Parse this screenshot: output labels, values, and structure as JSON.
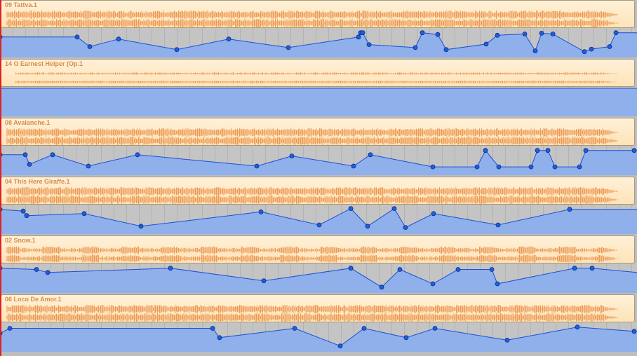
{
  "colors": {
    "region_fill": "#fde3b8",
    "waveform": "#ec9a55",
    "region_title": "#d88c4d",
    "automation_fill": "#8fb0ea",
    "automation_line": "#1b4fd6",
    "node": "#1e5fe0",
    "lane_background": "#c4c4c4",
    "playhead": "#e02020"
  },
  "icons": [
    "automation-node",
    "playhead-marker"
  ],
  "tracks": [
    {
      "region_name": "09 Tattva.1",
      "wave_style": "dense",
      "automation": [
        [
          0,
          0.3
        ],
        [
          110,
          0.3
        ],
        [
          128,
          0.68
        ],
        [
          169,
          0.38
        ],
        [
          252,
          0.8
        ],
        [
          326,
          0.38
        ],
        [
          411,
          0.72
        ],
        [
          511,
          0.3
        ],
        [
          514,
          0.13
        ],
        [
          517,
          0.13
        ],
        [
          526,
          0.6
        ],
        [
          592,
          0.72
        ],
        [
          602,
          0.13
        ],
        [
          624,
          0.2
        ],
        [
          636,
          0.8
        ],
        [
          693,
          0.58
        ],
        [
          709,
          0.23
        ],
        [
          748,
          0.18
        ],
        [
          763,
          0.85
        ],
        [
          772,
          0.15
        ],
        [
          788,
          0.18
        ],
        [
          833,
          0.88
        ],
        [
          843,
          0.78
        ],
        [
          869,
          0.68
        ],
        [
          878,
          0.13
        ],
        [
          908,
          0.13
        ]
      ]
    },
    {
      "region_name": "14 O Earnest Helper (Op.1",
      "wave_style": "faint",
      "automation": [
        [
          0,
          0.0
        ],
        [
          908,
          0.0
        ]
      ]
    },
    {
      "region_name": "08 Avalanche.1",
      "wave_style": "dense",
      "automation": [
        [
          0,
          0.3
        ],
        [
          36,
          0.3
        ],
        [
          42,
          0.68
        ],
        [
          75,
          0.3
        ],
        [
          126,
          0.75
        ],
        [
          196,
          0.3
        ],
        [
          366,
          0.75
        ],
        [
          416,
          0.35
        ],
        [
          504,
          0.75
        ],
        [
          528,
          0.3
        ],
        [
          617,
          0.78
        ],
        [
          680,
          0.78
        ],
        [
          692,
          0.13
        ],
        [
          711,
          0.78
        ],
        [
          757,
          0.78
        ],
        [
          766,
          0.13
        ],
        [
          781,
          0.13
        ],
        [
          791,
          0.78
        ],
        [
          826,
          0.78
        ],
        [
          835,
          0.13
        ],
        [
          904,
          0.13
        ],
        [
          908,
          0.13
        ]
      ]
    },
    {
      "region_name": "04 This Here Giraffe.1",
      "wave_style": "dense",
      "automation": [
        [
          0,
          0.13
        ],
        [
          33,
          0.2
        ],
        [
          38,
          0.38
        ],
        [
          120,
          0.3
        ],
        [
          201,
          0.8
        ],
        [
          372,
          0.23
        ],
        [
          455,
          0.75
        ],
        [
          500,
          0.1
        ],
        [
          524,
          0.8
        ],
        [
          562,
          0.1
        ],
        [
          578,
          0.85
        ],
        [
          618,
          0.3
        ],
        [
          710,
          0.75
        ],
        [
          812,
          0.13
        ],
        [
          908,
          0.13
        ]
      ]
    },
    {
      "region_name": "02 Snow.1",
      "wave_style": "sparse",
      "automation": [
        [
          0,
          0.13
        ],
        [
          52,
          0.18
        ],
        [
          68,
          0.3
        ],
        [
          243,
          0.13
        ],
        [
          376,
          0.63
        ],
        [
          500,
          0.13
        ],
        [
          544,
          0.88
        ],
        [
          570,
          0.18
        ],
        [
          617,
          0.75
        ],
        [
          653,
          0.18
        ],
        [
          701,
          0.18
        ],
        [
          709,
          0.75
        ],
        [
          819,
          0.13
        ],
        [
          844,
          0.13
        ],
        [
          908,
          0.3
        ]
      ]
    },
    {
      "region_name": "06 Loco De Amor.1",
      "wave_style": "dense",
      "automation": [
        [
          0,
          0.38
        ],
        [
          14,
          0.18
        ],
        [
          303,
          0.18
        ],
        [
          313,
          0.55
        ],
        [
          420,
          0.18
        ],
        [
          485,
          0.88
        ],
        [
          519,
          0.18
        ],
        [
          579,
          0.55
        ],
        [
          620,
          0.18
        ],
        [
          723,
          0.65
        ],
        [
          823,
          0.13
        ],
        [
          904,
          0.3
        ],
        [
          908,
          0.3
        ]
      ]
    }
  ]
}
